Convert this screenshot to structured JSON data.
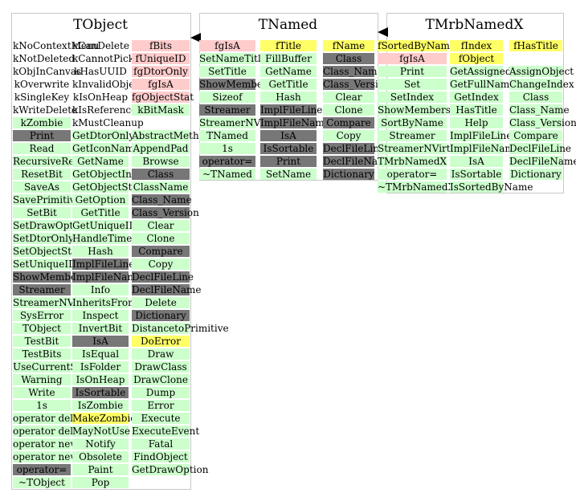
{
  "colors": {
    "method": "#ccffcc",
    "member": "#ffcccc",
    "own_member": "#ffff66",
    "inherited_virtual": "#777777",
    "border": "#c8c8c8"
  },
  "classes": [
    {
      "name": "TObject",
      "columns": [
        [
          {
            "t": "kNoContextMenu",
            "c": "none"
          },
          {
            "t": "kNotDeleted",
            "c": "none"
          },
          {
            "t": "kObjInCanvas",
            "c": "none"
          },
          {
            "t": "kOverwrite",
            "c": "none"
          },
          {
            "t": "kSingleKey",
            "c": "none"
          },
          {
            "t": "kWriteDelete",
            "c": "none"
          },
          {
            "t": "kZombie",
            "c": "g"
          },
          {
            "t": "Print",
            "c": "k"
          },
          {
            "t": "Read",
            "c": "g"
          },
          {
            "t": "RecursiveRemove",
            "c": "g"
          },
          {
            "t": "ResetBit",
            "c": "g"
          },
          {
            "t": "SaveAs",
            "c": "g"
          },
          {
            "t": "SavePrimitive",
            "c": "g"
          },
          {
            "t": "SetBit",
            "c": "g"
          },
          {
            "t": "SetDrawOption",
            "c": "g"
          },
          {
            "t": "SetDtorOnly",
            "c": "g"
          },
          {
            "t": "SetObjectStat",
            "c": "g"
          },
          {
            "t": "SetUniqueID",
            "c": "g"
          },
          {
            "t": "ShowMembers",
            "c": "k"
          },
          {
            "t": "Streamer",
            "c": "k"
          },
          {
            "t": "StreamerNVirtual",
            "c": "g"
          },
          {
            "t": "SysError",
            "c": "g"
          },
          {
            "t": "TObject",
            "c": "g"
          },
          {
            "t": "TestBit",
            "c": "g"
          },
          {
            "t": "TestBits",
            "c": "g"
          },
          {
            "t": "UseCurrentStyle",
            "c": "g"
          },
          {
            "t": "Warning",
            "c": "g"
          },
          {
            "t": "Write",
            "c": "g"
          },
          {
            "t": "1s",
            "c": "g"
          },
          {
            "t": "operator delete",
            "c": "g"
          },
          {
            "t": "operator delete[]",
            "c": "g"
          },
          {
            "t": "operator new",
            "c": "g"
          },
          {
            "t": "operator new[]",
            "c": "g"
          },
          {
            "t": "operator=",
            "c": "k"
          },
          {
            "t": "~TObject",
            "c": "g"
          }
        ],
        [
          {
            "t": "kCanDelete",
            "c": "none"
          },
          {
            "t": "kCannotPick",
            "c": "none"
          },
          {
            "t": "kHasUUID",
            "c": "none"
          },
          {
            "t": "kInvalidObject",
            "c": "none"
          },
          {
            "t": "kIsOnHeap",
            "c": "none"
          },
          {
            "t": "kIsReferenced",
            "c": "none"
          },
          {
            "t": "kMustCleanup",
            "c": "none"
          },
          {
            "t": "GetDtorOnly",
            "c": "g"
          },
          {
            "t": "GetIconName",
            "c": "g"
          },
          {
            "t": "GetName",
            "c": "g"
          },
          {
            "t": "GetObjectInfo",
            "c": "g"
          },
          {
            "t": "GetObjectStat",
            "c": "g"
          },
          {
            "t": "GetOption",
            "c": "g"
          },
          {
            "t": "GetTitle",
            "c": "g"
          },
          {
            "t": "GetUniqueID",
            "c": "g"
          },
          {
            "t": "HandleTimer",
            "c": "g"
          },
          {
            "t": "Hash",
            "c": "g"
          },
          {
            "t": "ImplFileLine",
            "c": "k"
          },
          {
            "t": "ImplFileName",
            "c": "k"
          },
          {
            "t": "Info",
            "c": "g"
          },
          {
            "t": "InheritsFrom",
            "c": "g"
          },
          {
            "t": "Inspect",
            "c": "g"
          },
          {
            "t": "InvertBit",
            "c": "g"
          },
          {
            "t": "IsA",
            "c": "k"
          },
          {
            "t": "IsEqual",
            "c": "g"
          },
          {
            "t": "IsFolder",
            "c": "g"
          },
          {
            "t": "IsOnHeap",
            "c": "g"
          },
          {
            "t": "IsSortable",
            "c": "k"
          },
          {
            "t": "IsZombie",
            "c": "g"
          },
          {
            "t": "MakeZombie",
            "c": "y"
          },
          {
            "t": "MayNotUse",
            "c": "g"
          },
          {
            "t": "Notify",
            "c": "g"
          },
          {
            "t": "Obsolete",
            "c": "g"
          },
          {
            "t": "Paint",
            "c": "g"
          },
          {
            "t": "Pop",
            "c": "g"
          }
        ],
        [
          {
            "t": "fBits",
            "c": "p"
          },
          {
            "t": "fUniqueID",
            "c": "p"
          },
          {
            "t": "fgDtorOnly",
            "c": "p"
          },
          {
            "t": "fgIsA",
            "c": "p"
          },
          {
            "t": "fgObjectStat",
            "c": "p"
          },
          {
            "t": "kBitMask",
            "c": "g"
          },
          {
            "t": "",
            "c": "none"
          },
          {
            "t": "AbstractMethod",
            "c": "g"
          },
          {
            "t": "AppendPad",
            "c": "g"
          },
          {
            "t": "Browse",
            "c": "g"
          },
          {
            "t": "Class",
            "c": "k"
          },
          {
            "t": "ClassName",
            "c": "g"
          },
          {
            "t": "Class_Name",
            "c": "k"
          },
          {
            "t": "Class_Version",
            "c": "k"
          },
          {
            "t": "Clear",
            "c": "g"
          },
          {
            "t": "Clone",
            "c": "g"
          },
          {
            "t": "Compare",
            "c": "k"
          },
          {
            "t": "Copy",
            "c": "g"
          },
          {
            "t": "DeclFileLine",
            "c": "k"
          },
          {
            "t": "DeclFileName",
            "c": "k"
          },
          {
            "t": "Delete",
            "c": "g"
          },
          {
            "t": "Dictionary",
            "c": "k"
          },
          {
            "t": "DistancetoPrimitive",
            "c": "g"
          },
          {
            "t": "DoError",
            "c": "y"
          },
          {
            "t": "Draw",
            "c": "g"
          },
          {
            "t": "DrawClass",
            "c": "g"
          },
          {
            "t": "DrawClone",
            "c": "g"
          },
          {
            "t": "Dump",
            "c": "g"
          },
          {
            "t": "Error",
            "c": "g"
          },
          {
            "t": "Execute",
            "c": "g"
          },
          {
            "t": "ExecuteEvent",
            "c": "g"
          },
          {
            "t": "Fatal",
            "c": "g"
          },
          {
            "t": "FindObject",
            "c": "g"
          },
          {
            "t": "GetDrawOption",
            "c": "g"
          }
        ]
      ]
    },
    {
      "name": "TNamed",
      "columns": [
        [
          {
            "t": "fgIsA",
            "c": "p"
          },
          {
            "t": "SetNameTitle",
            "c": "g"
          },
          {
            "t": "SetTitle",
            "c": "g"
          },
          {
            "t": "ShowMembers",
            "c": "k"
          },
          {
            "t": "Sizeof",
            "c": "g"
          },
          {
            "t": "Streamer",
            "c": "k"
          },
          {
            "t": "StreamerNVirtual",
            "c": "g"
          },
          {
            "t": "TNamed",
            "c": "g"
          },
          {
            "t": "1s",
            "c": "g"
          },
          {
            "t": "operator=",
            "c": "k"
          },
          {
            "t": "~TNamed",
            "c": "g"
          }
        ],
        [
          {
            "t": "fTitle",
            "c": "y"
          },
          {
            "t": "FillBuffer",
            "c": "g"
          },
          {
            "t": "GetName",
            "c": "g"
          },
          {
            "t": "GetTitle",
            "c": "g"
          },
          {
            "t": "Hash",
            "c": "g"
          },
          {
            "t": "ImplFileLine",
            "c": "k"
          },
          {
            "t": "ImplFileName",
            "c": "k"
          },
          {
            "t": "IsA",
            "c": "k"
          },
          {
            "t": "IsSortable",
            "c": "k"
          },
          {
            "t": "Print",
            "c": "k"
          },
          {
            "t": "SetName",
            "c": "g"
          }
        ],
        [
          {
            "t": "fName",
            "c": "y"
          },
          {
            "t": "Class",
            "c": "k"
          },
          {
            "t": "Class_Name",
            "c": "k"
          },
          {
            "t": "Class_Version",
            "c": "k"
          },
          {
            "t": "Clear",
            "c": "g"
          },
          {
            "t": "Clone",
            "c": "g"
          },
          {
            "t": "Compare",
            "c": "k"
          },
          {
            "t": "Copy",
            "c": "g"
          },
          {
            "t": "DeclFileLine",
            "c": "k"
          },
          {
            "t": "DeclFileName",
            "c": "k"
          },
          {
            "t": "Dictionary",
            "c": "k"
          }
        ]
      ]
    },
    {
      "name": "TMrbNamedX",
      "columns": [
        [
          {
            "t": "fSortedByName",
            "c": "y"
          },
          {
            "t": "fgIsA",
            "c": "p"
          },
          {
            "t": "Print",
            "c": "g"
          },
          {
            "t": "Set",
            "c": "g"
          },
          {
            "t": "SetIndex",
            "c": "g"
          },
          {
            "t": "ShowMembers",
            "c": "g"
          },
          {
            "t": "SortByName",
            "c": "g"
          },
          {
            "t": "Streamer",
            "c": "g"
          },
          {
            "t": "StreamerNVirtual",
            "c": "g"
          },
          {
            "t": "TMrbNamedX",
            "c": "g"
          },
          {
            "t": "operator=",
            "c": "g"
          },
          {
            "t": "~TMrbNamedX",
            "c": "g"
          }
        ],
        [
          {
            "t": "fIndex",
            "c": "y"
          },
          {
            "t": "fObject",
            "c": "y"
          },
          {
            "t": "GetAssignedObject",
            "c": "g"
          },
          {
            "t": "GetFullName",
            "c": "g"
          },
          {
            "t": "GetIndex",
            "c": "g"
          },
          {
            "t": "HasTitle",
            "c": "g"
          },
          {
            "t": "Help",
            "c": "g"
          },
          {
            "t": "ImplFileLine",
            "c": "g"
          },
          {
            "t": "ImplFileName",
            "c": "g"
          },
          {
            "t": "IsA",
            "c": "g"
          },
          {
            "t": "IsSortable",
            "c": "g"
          },
          {
            "t": "IsSortedByName",
            "c": "g"
          }
        ],
        [
          {
            "t": "fHasTitle",
            "c": "y"
          },
          {
            "t": "",
            "c": "none"
          },
          {
            "t": "AssignObject",
            "c": "g"
          },
          {
            "t": "ChangeIndex",
            "c": "g"
          },
          {
            "t": "Class",
            "c": "g"
          },
          {
            "t": "Class_Name",
            "c": "g"
          },
          {
            "t": "Class_Version",
            "c": "g"
          },
          {
            "t": "Compare",
            "c": "g"
          },
          {
            "t": "DeclFileLine",
            "c": "g"
          },
          {
            "t": "DeclFileName",
            "c": "g"
          },
          {
            "t": "Dictionary",
            "c": "g"
          }
        ]
      ]
    }
  ]
}
